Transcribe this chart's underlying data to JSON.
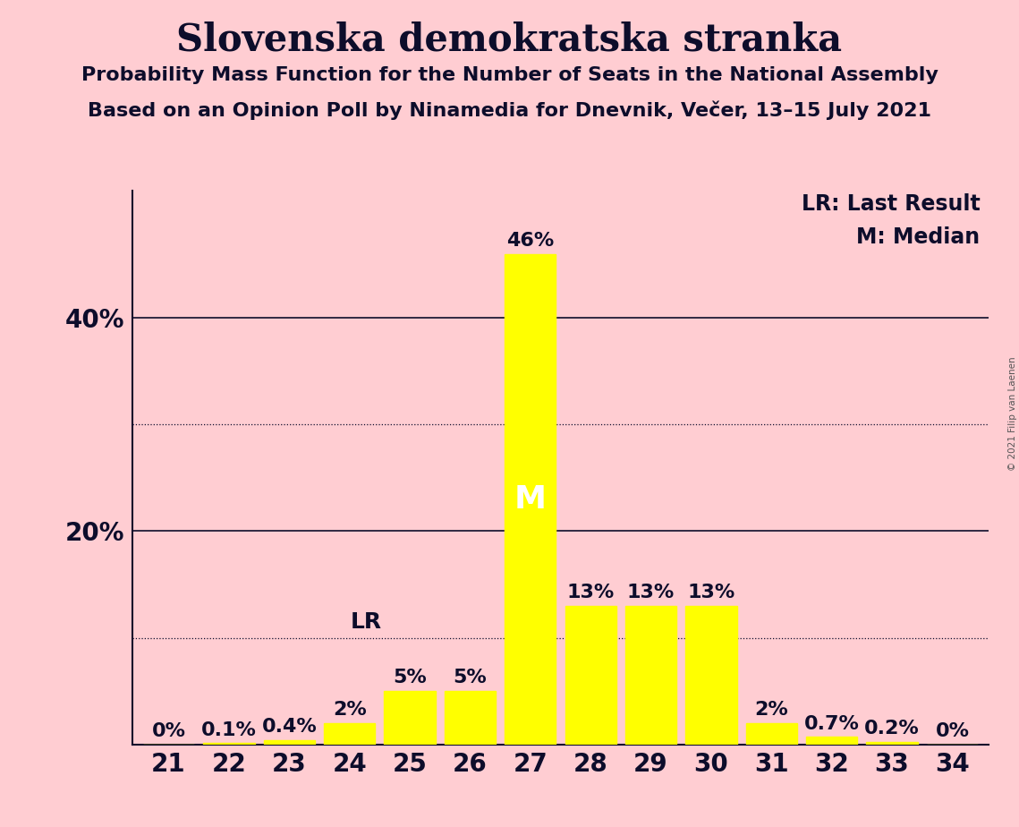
{
  "title": "Slovenska demokratska stranka",
  "subtitle1": "Probability Mass Function for the Number of Seats in the National Assembly",
  "subtitle2": "Based on an Opinion Poll by Ninamedia for Dnevnik, Večer, 13–15 July 2021",
  "copyright": "© 2021 Filip van Laenen",
  "categories": [
    21,
    22,
    23,
    24,
    25,
    26,
    27,
    28,
    29,
    30,
    31,
    32,
    33,
    34
  ],
  "values": [
    0.0,
    0.1,
    0.4,
    2.0,
    5.0,
    5.0,
    46.0,
    13.0,
    13.0,
    13.0,
    2.0,
    0.7,
    0.2,
    0.0
  ],
  "labels": [
    "0%",
    "0.1%",
    "0.4%",
    "2%",
    "5%",
    "5%",
    "46%",
    "13%",
    "13%",
    "13%",
    "2%",
    "0.7%",
    "0.2%",
    "0%"
  ],
  "bar_color": "#FFFF00",
  "background_color": "#FFCDD2",
  "text_color": "#0D0D2B",
  "median_seat": 27,
  "last_result_seat": 25,
  "legend_lr": "LR: Last Result",
  "legend_m": "M: Median",
  "solid_gridlines": [
    20,
    40
  ],
  "dotted_gridlines": [
    10,
    30
  ],
  "ylim": [
    0,
    52
  ],
  "ytick_positions": [
    20,
    40
  ],
  "ytick_labels": [
    "20%",
    "40%"
  ],
  "title_fontsize": 30,
  "subtitle_fontsize": 16,
  "axis_fontsize": 20,
  "bar_label_fontsize": 16,
  "median_label_fontsize": 26
}
